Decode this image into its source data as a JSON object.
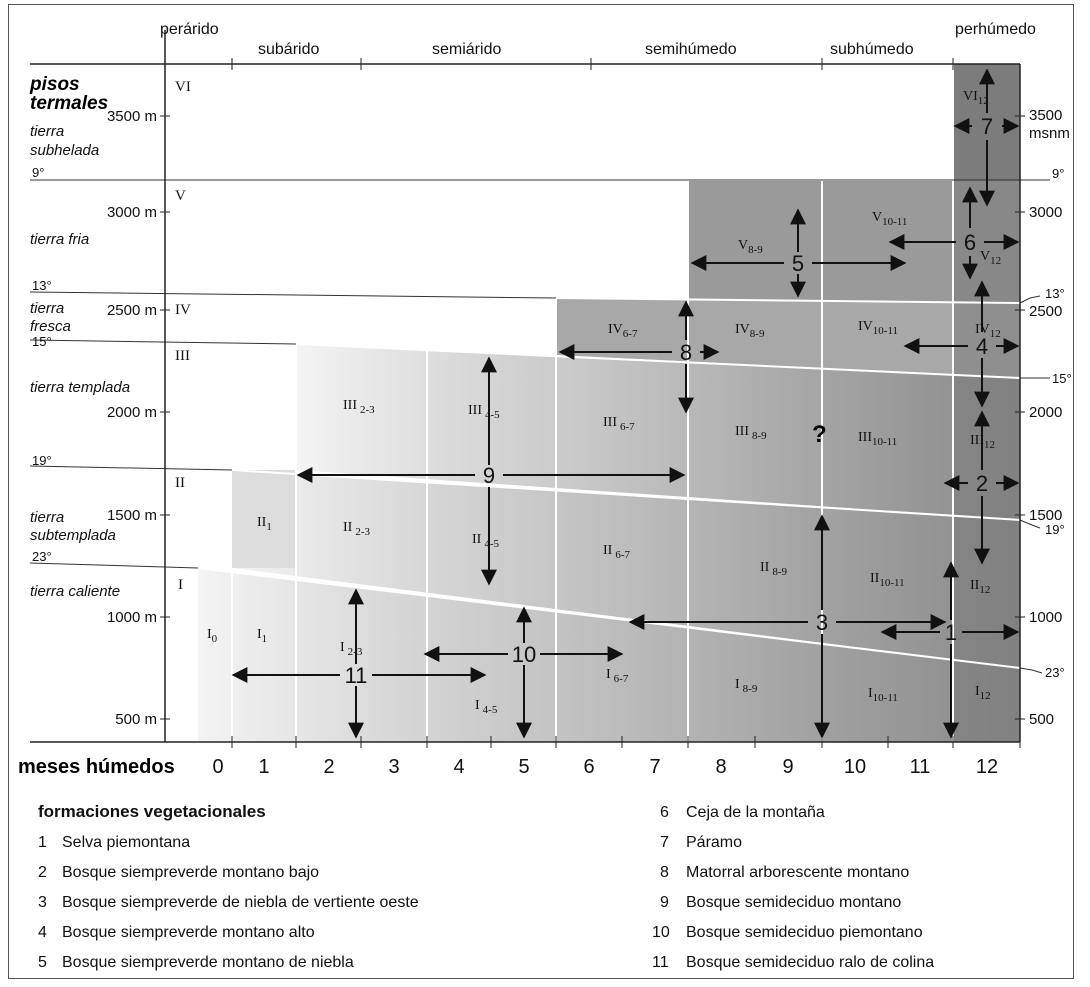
{
  "zones": [
    "perárido",
    "subárido",
    "semiárido",
    "semihúmedo",
    "subhúmedo",
    "perhúmedo"
  ],
  "pisos_title": [
    "pisos",
    "termales"
  ],
  "pisos": [
    "tierra",
    "subhelada",
    "tierra fria",
    "tierra",
    "fresca",
    "tierra templada",
    "tierra",
    "subtemplada",
    "tierra caliente"
  ],
  "left_temps": [
    "9°",
    "13°",
    "15°",
    "19°",
    "23°"
  ],
  "right_temps": [
    "9°",
    "13°",
    "15°",
    "19°",
    "23°"
  ],
  "left_alt": [
    "3500 m",
    "3000 m",
    "2500 m",
    "2000 m",
    "1500 m",
    "1000 m",
    "500 m"
  ],
  "right_alt": [
    "3500",
    "msnm",
    "3000",
    "2500",
    "2000",
    "1500",
    "1000",
    "500"
  ],
  "romans": [
    "VI",
    "V",
    "IV",
    "III",
    "II",
    "I"
  ],
  "cells": {
    "vi12": "VI",
    "vi12s": "12",
    "v89": "V",
    "v89s": "8-9",
    "v1011": "V",
    "v1011s": "10-11",
    "v12": "V",
    "v12s": "12",
    "iv67": "IV",
    "iv67s": "6-7",
    "iv89": "IV",
    "iv89s": "8-9",
    "iv1011": "IV",
    "iv1011s": "10-11",
    "iv12": "IV",
    "iv12s": "12",
    "iii23": "III",
    "iii23s": "2-3",
    "iii45": "III",
    "iii45s": "4-5",
    "iii67": "III",
    "iii67s": "6-7",
    "iii89": "III",
    "iii89s": "8-9",
    "iii1011": "III",
    "iii1011s": "10-11",
    "iii12": "III",
    "iii12s": "12",
    "ii1": "II",
    "ii1s": "1",
    "ii23": "II",
    "ii23s": "2-3",
    "ii45": "II",
    "ii45s": "4-5",
    "ii67": "II",
    "ii67s": "6-7",
    "ii89": "II",
    "ii89s": "8-9",
    "ii1011": "II",
    "ii1011s": "10-11",
    "ii12": "II",
    "ii12s": "12",
    "i0": "I",
    "i0s": "0",
    "i1": "I",
    "i1s": "1",
    "i23": "I",
    "i23s": "2-3",
    "i45": "I",
    "i45s": "4-5",
    "i67": "I",
    "i67s": "6-7",
    "i89": "I",
    "i89s": "8-9",
    "i1011": "I",
    "i1011s": "10-11",
    "i12": "I",
    "i12s": "12"
  },
  "question": "?",
  "numbers": [
    "7",
    "6",
    "5",
    "8",
    "4",
    "9",
    "2",
    "3",
    "1",
    "10",
    "11"
  ],
  "months_label": "meses húmedos",
  "months": [
    "0",
    "1",
    "2",
    "3",
    "4",
    "5",
    "6",
    "7",
    "8",
    "9",
    "10",
    "11",
    "12"
  ],
  "legend_title": "formaciones vegetacionales",
  "legend_left": [
    {
      "n": "1",
      "t": "Selva piemontana"
    },
    {
      "n": "2",
      "t": "Bosque siempreverde montano bajo"
    },
    {
      "n": "3",
      "t": "Bosque siempreverde de niebla de vertiente oeste"
    },
    {
      "n": "4",
      "t": "Bosque siempreverde montano alto"
    },
    {
      "n": "5",
      "t": "Bosque siempreverde montano de niebla"
    }
  ],
  "legend_right": [
    {
      "n": "6",
      "t": "Ceja de la montaña"
    },
    {
      "n": "7",
      "t": "Páramo"
    },
    {
      "n": "8",
      "t": "Matorral arborescente montano"
    },
    {
      "n": "9",
      "t": "Bosque semideciduo montano"
    },
    {
      "n": "10",
      "t": "Bosque semideciduo piemontano"
    },
    {
      "n": "11",
      "t": "Bosque semideciduo ralo de colina"
    }
  ],
  "colors": {
    "light": "#e8e8e8",
    "mid": "#b5b5b5",
    "dark": "#8a8a8a",
    "darkest": "#6e6e6e"
  }
}
